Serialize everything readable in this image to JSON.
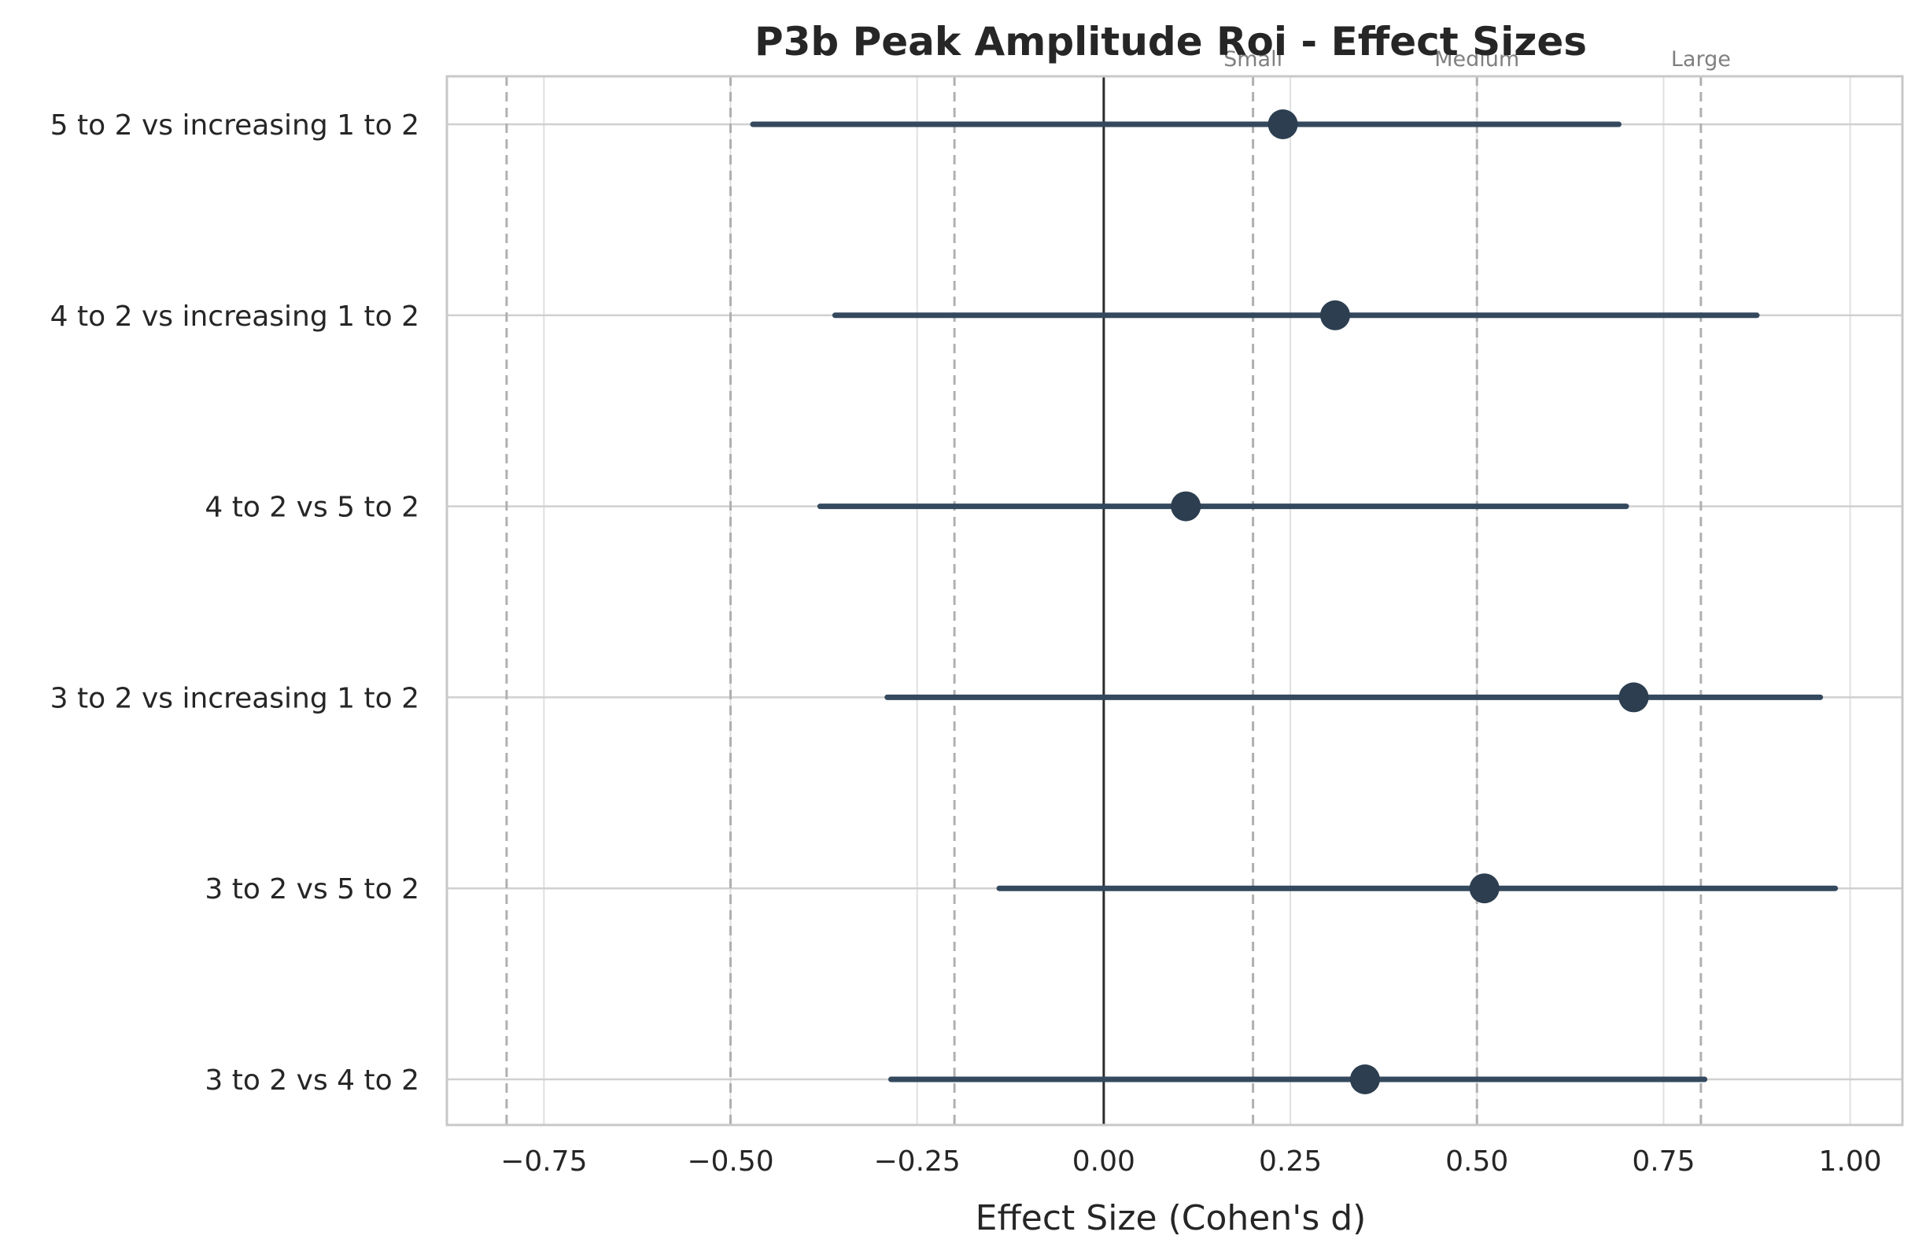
{
  "chart_data": {
    "type": "scatter",
    "subtype": "forest-plot",
    "title": "P3b Peak Amplitude Roi - Effect Sizes",
    "xlabel": "Effect Size (Cohen's d)",
    "ylabel": "",
    "xlim": [
      -0.88,
      1.07
    ],
    "x_ticks": [
      -0.75,
      -0.5,
      -0.25,
      0.0,
      0.25,
      0.5,
      0.75,
      1.0
    ],
    "x_tick_labels": [
      "−0.75",
      "−0.50",
      "−0.25",
      "0.00",
      "0.25",
      "0.50",
      "0.75",
      "1.00"
    ],
    "grid": true,
    "zero_line": 0.0,
    "thresholds": [
      {
        "label": "",
        "value": -0.8
      },
      {
        "label": "",
        "value": -0.5
      },
      {
        "label": "",
        "value": -0.2
      },
      {
        "label": "Small",
        "value": 0.2
      },
      {
        "label": "Medium",
        "value": 0.5
      },
      {
        "label": "Large",
        "value": 0.8
      }
    ],
    "categories": [
      "5 to 2 vs increasing 1 to 2",
      "4 to 2 vs increasing 1 to 2",
      "4 to 2 vs 5 to 2",
      "3 to 2 vs increasing 1 to 2",
      "3 to 2 vs 5 to 2",
      "3 to 2 vs 4 to 2"
    ],
    "values": [
      0.24,
      0.31,
      0.11,
      0.71,
      0.51,
      0.35
    ],
    "ci_low": [
      -0.47,
      -0.36,
      -0.38,
      -0.29,
      -0.14,
      -0.285
    ],
    "ci_high": [
      0.69,
      0.875,
      0.7,
      0.96,
      0.98,
      0.805
    ],
    "colors": {
      "point": "#2c3e50",
      "ci_line": "#34495e",
      "zero_line": "#2b2b2b",
      "threshold_line": "#b0b0b0",
      "grid": "#e0e0e0",
      "frame": "#c8c8c8"
    }
  }
}
